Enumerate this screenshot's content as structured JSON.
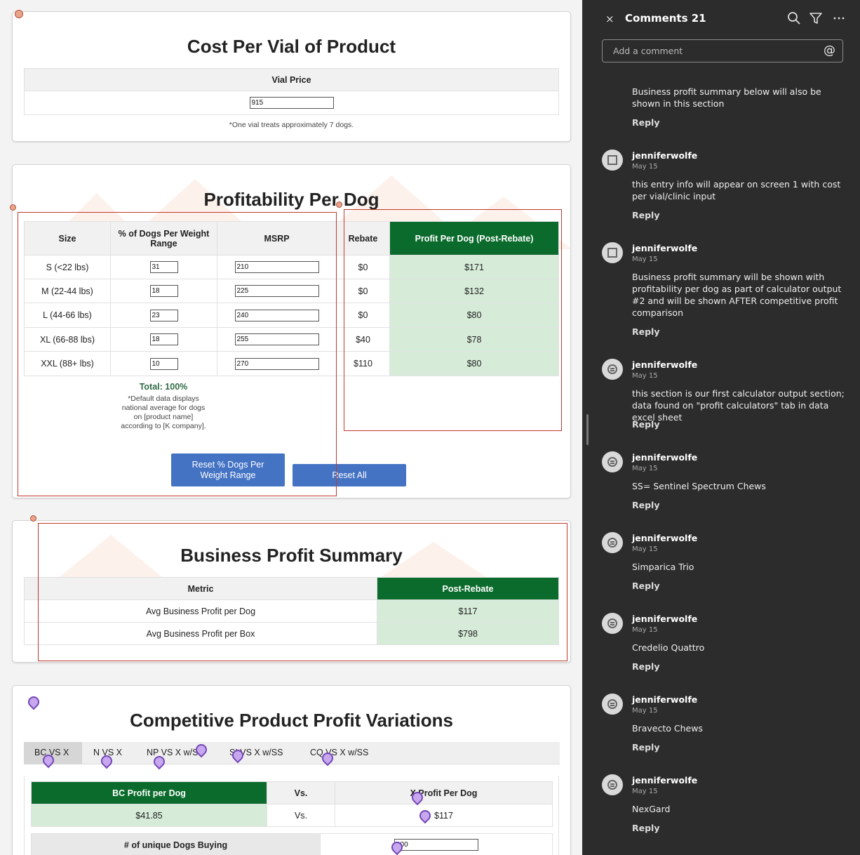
{
  "cost_card": {
    "title": "Cost Per Vial of Product",
    "header": "Vial Price",
    "vial_price": "915",
    "note": "*One vial treats approximately 7 dogs."
  },
  "profit_card": {
    "title": "Profitability Per Dog",
    "headers": [
      "Size",
      "% of Dogs Per Weight Range",
      "MSRP",
      "Rebate",
      "Profit Per Dog (Post-Rebate)"
    ],
    "rows": [
      {
        "size": "S (<22 lbs)",
        "pct": "31",
        "msrp": "210",
        "rebate": "$0",
        "profit": "$171"
      },
      {
        "size": "M (22-44 lbs)",
        "pct": "18",
        "msrp": "225",
        "rebate": "$0",
        "profit": "$132"
      },
      {
        "size": "L (44-66 lbs)",
        "pct": "23",
        "msrp": "240",
        "rebate": "$0",
        "profit": "$80"
      },
      {
        "size": "XL (66-88 lbs)",
        "pct": "18",
        "msrp": "255",
        "rebate": "$40",
        "profit": "$78"
      },
      {
        "size": "XXL (88+ lbs)",
        "pct": "10",
        "msrp": "270",
        "rebate": "$110",
        "profit": "$80"
      }
    ],
    "total": "Total: 100%",
    "note_lines": [
      "*Default data displays",
      "national average for dogs",
      "on [product name]",
      "according to [K company]."
    ],
    "reset_pct_label": "Reset % Dogs Per Weight Range",
    "reset_all_label": "Reset All"
  },
  "summary_card": {
    "title": "Business Profit Summary",
    "headers": [
      "Metric",
      "Post-Rebate"
    ],
    "rows": [
      {
        "metric": "Avg Business Profit per Dog",
        "value": "$117"
      },
      {
        "metric": "Avg Business Profit per Box",
        "value": "$798"
      }
    ]
  },
  "competitive_card": {
    "title": "Competitive Product Profit Variations",
    "tabs": [
      "BC VS X",
      "N VS X",
      "NP VS X w/SS",
      "SI VS X w/SS",
      "CQ VS X w/SS"
    ],
    "headers": [
      "BC Profit per Dog",
      "Vs.",
      "X Profit Per Dog"
    ],
    "row": {
      "bc": "$41.85",
      "vs": "Vs.",
      "x": "$117"
    },
    "unique_label": "# of unique Dogs Buying",
    "unique_value": "100"
  },
  "comments": {
    "title": "Comments 21",
    "add_placeholder": "Add a comment",
    "at_symbol": "@",
    "close": "×",
    "reply_label": "Reply",
    "items": [
      {
        "name": "",
        "date": "",
        "text": "Business profit summary below will also be shown in this section"
      },
      {
        "name": "jenniferwolfe",
        "date": "May 15",
        "text": "this entry info will appear on screen 1 with cost per vial/clinic input"
      },
      {
        "name": "jenniferwolfe",
        "date": "May 15",
        "text": "Business profit summary will be shown with profitability per dog as part of calculator output #2 and will be shown AFTER competitive profit comparison"
      },
      {
        "name": "jenniferwolfe",
        "date": "May 15",
        "text": "this section is our first calculator output section; data found on \"profit calculators\" tab in data excel sheet"
      },
      {
        "name": "jenniferwolfe",
        "date": "May 15",
        "text": "SS= Sentinel Spectrum Chews"
      },
      {
        "name": "jenniferwolfe",
        "date": "May 15",
        "text": "Simparica Trio"
      },
      {
        "name": "jenniferwolfe",
        "date": "May 15",
        "text": "Credelio Quattro"
      },
      {
        "name": "jenniferwolfe",
        "date": "May 15",
        "text": "Bravecto Chews"
      },
      {
        "name": "jenniferwolfe",
        "date": "May 15",
        "text": "NexGard"
      }
    ]
  }
}
